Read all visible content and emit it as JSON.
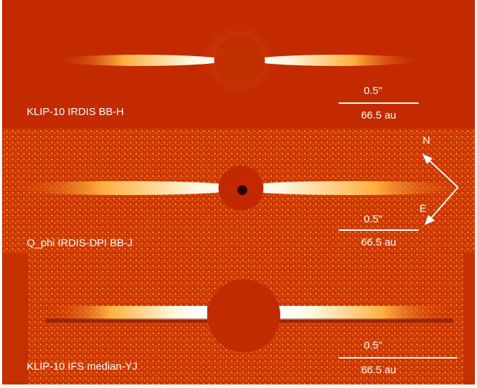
{
  "panels": [
    {
      "label": "KLIP-10 IRDIS BB-H",
      "scale_top": "0.5\"",
      "scale_bottom": "66.5 au"
    },
    {
      "label": "Q_phi IRDIS-DPI BB-J",
      "scale_top": "0.5\"",
      "scale_bottom": "66.5 au"
    },
    {
      "label": "KLIP-10 IFS median-YJ",
      "scale_top": "0.5\"",
      "scale_bottom": "66.5 au"
    }
  ],
  "compass": {
    "north": "N",
    "east": "E"
  }
}
